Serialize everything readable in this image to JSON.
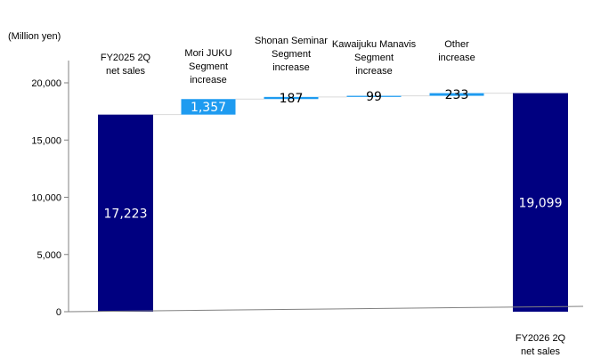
{
  "chart_data": {
    "type": "bar",
    "subtype": "waterfall",
    "unit_label": "(Million yen)",
    "ylim": [
      0,
      20000
    ],
    "yticks": [
      0,
      5000,
      10000,
      15000,
      20000
    ],
    "ytick_labels": [
      "0",
      "5,000",
      "10,000",
      "15,000",
      "20,000"
    ],
    "grid": false,
    "legend": "none",
    "bars": [
      {
        "label_lines": [
          "FY2025 2Q",
          "net sales"
        ],
        "kind": "total",
        "value": 17223,
        "value_label": "17,223"
      },
      {
        "label_lines": [
          "Mori JUKU",
          "Segment",
          "increase"
        ],
        "kind": "increase",
        "value": 1357,
        "value_label": "1,357"
      },
      {
        "label_lines": [
          "Shonan Seminar",
          "Segment",
          "increase"
        ],
        "kind": "increase",
        "value": 187,
        "value_label": "187"
      },
      {
        "label_lines": [
          "Kawaijuku Manavis",
          "Segment",
          "increase"
        ],
        "kind": "increase",
        "value": 99,
        "value_label": "99"
      },
      {
        "label_lines": [
          "Other",
          "increase"
        ],
        "kind": "increase",
        "value": 233,
        "value_label": "233"
      },
      {
        "label_lines": [
          "FY2026 2Q",
          "net sales"
        ],
        "kind": "total",
        "value": 19099,
        "value_label": "19,099"
      }
    ],
    "colors": {
      "total": "#000080",
      "increase": "#1E9BF0",
      "total_text": "#ffffff",
      "increase_text": "#ffffff",
      "small_text": "#000000",
      "axis": "#808080",
      "connector": "#d9d9d9"
    }
  }
}
